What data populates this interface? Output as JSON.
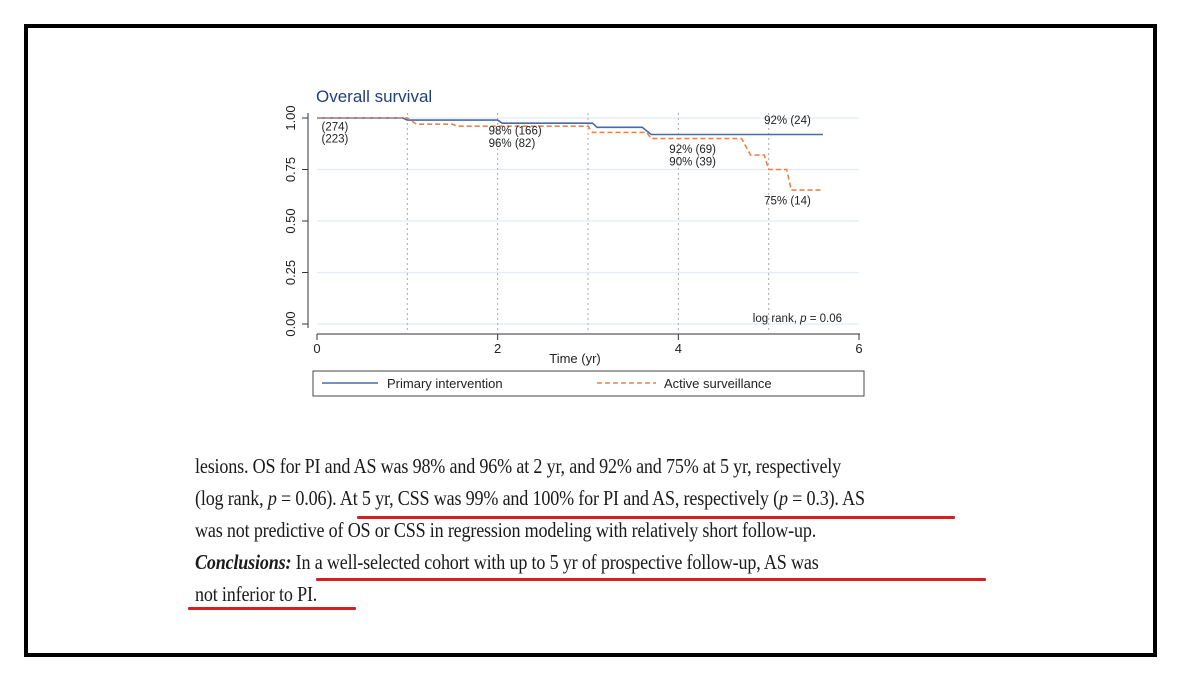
{
  "chart_data": {
    "type": "line",
    "title": "Overall survival",
    "xlabel": "Time (yr)",
    "ylabel": "",
    "xlim": [
      0,
      6
    ],
    "ylim": [
      0,
      1
    ],
    "x_ticks": [
      "0",
      "2",
      "4",
      "6"
    ],
    "y_ticks": [
      "0.00",
      "0.25",
      "0.50",
      "0.75",
      "1.00"
    ],
    "series": [
      {
        "name": "Primary intervention",
        "color": "#4a6aa5",
        "style": "solid",
        "x": [
          0,
          0.95,
          1.0,
          2.0,
          2.05,
          3.05,
          3.1,
          3.6,
          3.7,
          5.6
        ],
        "y": [
          1.0,
          1.0,
          0.99,
          0.99,
          0.975,
          0.975,
          0.955,
          0.955,
          0.92,
          0.92
        ]
      },
      {
        "name": "Active surveillance",
        "color": "#e8824a",
        "style": "dashed",
        "x": [
          0,
          1.0,
          1.1,
          1.5,
          1.55,
          3.0,
          3.05,
          3.65,
          3.7,
          4.7,
          4.8,
          4.95,
          5.0,
          5.2,
          5.25,
          5.6
        ],
        "y": [
          1.0,
          1.0,
          0.97,
          0.97,
          0.96,
          0.96,
          0.93,
          0.93,
          0.9,
          0.9,
          0.82,
          0.82,
          0.75,
          0.75,
          0.65,
          0.65
        ]
      }
    ],
    "annotations": [
      {
        "text": "(274)",
        "x": 0.05,
        "y": 0.94
      },
      {
        "text": "(223)",
        "x": 0.05,
        "y": 0.88
      },
      {
        "text": "98% (166)",
        "x": 1.9,
        "y": 0.92
      },
      {
        "text": "96% (82)",
        "x": 1.9,
        "y": 0.86
      },
      {
        "text": "92% (24)",
        "x": 4.95,
        "y": 0.97
      },
      {
        "text": "92% (69)",
        "x": 3.9,
        "y": 0.83
      },
      {
        "text": "90% (39)",
        "x": 3.9,
        "y": 0.77
      },
      {
        "text": "75% (14)",
        "x": 4.95,
        "y": 0.58
      }
    ],
    "stat_note": {
      "prefix": "log rank, ",
      "p_symbol": "p",
      "suffix": " = 0.06"
    },
    "ref_lines_x": [
      1,
      2,
      3,
      4,
      5
    ],
    "grid": "horizontal",
    "legend_position": "bottom"
  },
  "abstract": {
    "line1": "lesions. OS for PI and AS was 98% and 96% at 2 yr, and 92% and 75% at 5 yr, respectively",
    "line2_a": "(log rank, ",
    "line2_p1": "p",
    "line2_b": " = 0.06). At 5 yr, CSS was 99% and 100% for PI and AS, respectively (",
    "line2_p2": "p",
    "line2_c": " = 0.3). AS",
    "line3": "was not predictive of OS or CSS in regression modeling with relatively short follow-up.",
    "line4_label": "Conclusions:",
    "line4_text": " In a well-selected cohort with up to 5 yr of prospective follow-up, AS was",
    "line5": "not inferior to PI."
  },
  "colors": {
    "underline": "#d42020",
    "frame": "#000000",
    "pi_line": "#4a6aa5",
    "as_line": "#e8824a"
  }
}
